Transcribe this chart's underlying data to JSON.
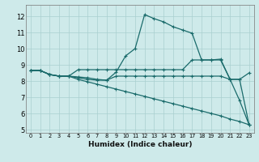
{
  "xlabel": "Humidex (Indice chaleur)",
  "background_color": "#ceeaea",
  "grid_color": "#aacfcf",
  "line_color": "#1a6b6b",
  "xlim": [
    -0.5,
    23.5
  ],
  "ylim": [
    4.8,
    12.7
  ],
  "yticks": [
    5,
    6,
    7,
    8,
    9,
    10,
    11,
    12
  ],
  "xticks": [
    0,
    1,
    2,
    3,
    4,
    5,
    6,
    7,
    8,
    9,
    10,
    11,
    12,
    13,
    14,
    15,
    16,
    17,
    18,
    19,
    20,
    21,
    22,
    23
  ],
  "series": [
    {
      "x": [
        0,
        1,
        2,
        3,
        4,
        5,
        6,
        7,
        8,
        9,
        10,
        11,
        12,
        13,
        14,
        15,
        16,
        17,
        18,
        19,
        20,
        21,
        22,
        23
      ],
      "y": [
        8.65,
        8.65,
        8.4,
        8.3,
        8.3,
        8.25,
        8.2,
        8.1,
        8.05,
        8.55,
        9.55,
        10.0,
        12.1,
        11.85,
        11.65,
        11.35,
        11.15,
        10.95,
        9.3,
        9.3,
        9.35,
        8.1,
        6.8,
        5.3
      ]
    },
    {
      "x": [
        0,
        1,
        2,
        3,
        4,
        5,
        6,
        7,
        8,
        9,
        10,
        11,
        12,
        13,
        14,
        15,
        16,
        17,
        18,
        19,
        20,
        21,
        22,
        23
      ],
      "y": [
        8.65,
        8.65,
        8.4,
        8.3,
        8.3,
        8.7,
        8.7,
        8.7,
        8.7,
        8.7,
        8.7,
        8.7,
        8.7,
        8.7,
        8.7,
        8.7,
        8.7,
        9.3,
        9.3,
        9.3,
        9.3,
        8.1,
        8.1,
        8.5
      ]
    },
    {
      "x": [
        0,
        1,
        2,
        3,
        4,
        5,
        6,
        7,
        8,
        9,
        10,
        11,
        12,
        13,
        14,
        15,
        16,
        17,
        18,
        19,
        20,
        21,
        22,
        23
      ],
      "y": [
        8.65,
        8.65,
        8.4,
        8.3,
        8.3,
        8.2,
        8.1,
        8.05,
        8.05,
        8.3,
        8.3,
        8.3,
        8.3,
        8.3,
        8.3,
        8.3,
        8.3,
        8.3,
        8.3,
        8.3,
        8.3,
        8.1,
        8.1,
        5.3
      ]
    },
    {
      "x": [
        0,
        1,
        2,
        3,
        4,
        5,
        6,
        7,
        8,
        9,
        10,
        11,
        12,
        13,
        14,
        15,
        16,
        17,
        18,
        19,
        20,
        21,
        22,
        23
      ],
      "y": [
        8.65,
        8.65,
        8.4,
        8.3,
        8.3,
        8.1,
        7.95,
        7.8,
        7.65,
        7.5,
        7.35,
        7.2,
        7.05,
        6.9,
        6.75,
        6.6,
        6.45,
        6.3,
        6.15,
        6.0,
        5.85,
        5.65,
        5.5,
        5.3
      ]
    }
  ]
}
